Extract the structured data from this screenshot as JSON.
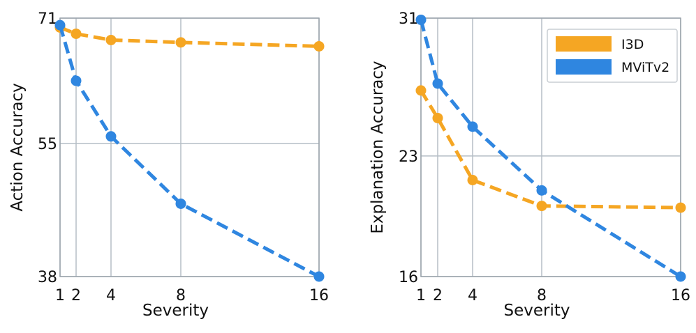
{
  "chart_data": [
    {
      "type": "line",
      "xlabel": "Severity",
      "ylabel": "Action Accuracy",
      "x": [
        1,
        2,
        4,
        8,
        16
      ],
      "xticks": [
        "1",
        "2",
        "4",
        "8",
        "16"
      ],
      "yticks": [
        71,
        55,
        38
      ],
      "ylim": [
        38,
        71
      ],
      "grid": true,
      "series": [
        {
          "name": "I3D",
          "color": "#f5a623",
          "values": [
            69.8,
            69.0,
            68.2,
            67.9,
            67.4
          ]
        },
        {
          "name": "MViTv2",
          "color": "#2f86e0",
          "values": [
            70.1,
            63.0,
            55.9,
            47.3,
            38.0
          ]
        }
      ]
    },
    {
      "type": "line",
      "xlabel": "Severity",
      "ylabel": "Explanation Accuracy",
      "x": [
        1,
        2,
        4,
        8,
        16
      ],
      "xticks": [
        "1",
        "2",
        "4",
        "8",
        "16"
      ],
      "yticks": [
        31,
        23,
        16
      ],
      "ylim": [
        16,
        31
      ],
      "grid": true,
      "legend": "top-right",
      "series": [
        {
          "name": "I3D",
          "color": "#f5a623",
          "values": [
            26.8,
            25.2,
            21.6,
            20.1,
            20.0
          ]
        },
        {
          "name": "MViTv2",
          "color": "#2f86e0",
          "values": [
            30.9,
            27.2,
            24.7,
            21.0,
            16.0
          ]
        }
      ]
    }
  ]
}
